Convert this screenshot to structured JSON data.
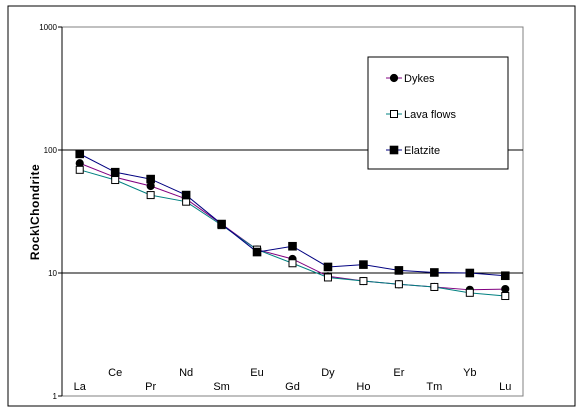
{
  "chart_data": {
    "type": "line",
    "ylabel": "Rock\\Chondrite",
    "yscale": "log",
    "ylim": [
      1,
      1000
    ],
    "y_ticks": [
      "1",
      "10",
      "100",
      "1000"
    ],
    "grid": "horizontal at 10 and 100",
    "legend_position": "top-right",
    "categories": [
      "La",
      "Ce",
      "Pr",
      "Nd",
      "Sm",
      "Eu",
      "Gd",
      "Dy",
      "Ho",
      "Er",
      "Tm",
      "Yb",
      "Lu"
    ],
    "series": [
      {
        "name": "Dykes",
        "marker": "circle-filled",
        "color": "#800080",
        "values": [
          78,
          60,
          51,
          40,
          25,
          15.5,
          13,
          9.4,
          8.6,
          8.1,
          7.7,
          7.3,
          7.4
        ]
      },
      {
        "name": "Lava flows",
        "marker": "square-open",
        "color": "#008080",
        "values": [
          69,
          57,
          43,
          38,
          24.5,
          15.5,
          12,
          9.2,
          8.6,
          8.1,
          7.7,
          6.9,
          6.5
        ]
      },
      {
        "name": "Elatzite",
        "marker": "square-filled",
        "color": "#000080",
        "values": [
          93,
          66,
          58,
          43,
          25,
          14.8,
          16.5,
          11.2,
          11.7,
          10.5,
          10.1,
          10,
          9.5
        ]
      }
    ]
  }
}
